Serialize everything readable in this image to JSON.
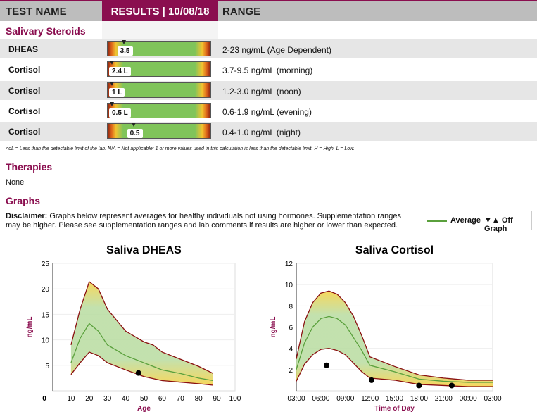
{
  "header": {
    "test_name": "TEST NAME",
    "results": "RESULTS | 10/08/18",
    "range": "RANGE"
  },
  "section": "Salivary Steroids",
  "rows": [
    {
      "name": "DHEAS",
      "value": "3.5",
      "marker": 0.14,
      "range": "2-23 ng/mL (Age Dependent)"
    },
    {
      "name": "Cortisol",
      "value": "2.4 L",
      "marker": 0.02,
      "range": "3.7-9.5 ng/mL (morning)"
    },
    {
      "name": "Cortisol",
      "value": "1 L",
      "marker": 0.02,
      "range": "1.2-3.0 ng/mL (noon)"
    },
    {
      "name": "Cortisol",
      "value": "0.5 L",
      "marker": 0.02,
      "range": "0.6-1.9 ng/mL (evening)"
    },
    {
      "name": "Cortisol",
      "value": "0.5",
      "marker": 0.24,
      "range": "0.4-1.0 ng/mL (night)"
    }
  ],
  "footnote": "<dL = Less than the detectable limit of the lab.  N/A = Not applicable; 1 or more values used in this calculation is less than the detectable limit.  H = High.  L = Low.",
  "therapies": {
    "title": "Therapies",
    "value": "None"
  },
  "graphs": {
    "title": "Graphs",
    "disclaimer_label": "Disclaimer:",
    "disclaimer": " Graphs below represent averages for healthy individuals not using hormones. Supplementation ranges may be higher. Please see supplementation ranges and lab comments if results are higher or lower than expected."
  },
  "legend": {
    "average": "Average",
    "off_graph": "▼▲ Off Graph"
  },
  "colors": {
    "brand": "#8a0e4f",
    "avg": "#5aa03c",
    "band": "#8a1010"
  },
  "chart_data": [
    {
      "type": "area",
      "title": "Saliva DHEAS",
      "xlabel": "Age",
      "ylabel": "ng/mL",
      "xlim": [
        0,
        100
      ],
      "ylim": [
        0,
        25
      ],
      "xticks": [
        10,
        20,
        30,
        40,
        50,
        60,
        70,
        80,
        90,
        100
      ],
      "yticks": [
        5,
        10,
        15,
        20,
        25
      ],
      "zero_label": "0",
      "x": [
        10,
        15,
        20,
        25,
        30,
        40,
        50,
        55,
        60,
        70,
        80,
        88
      ],
      "upper": [
        9,
        16,
        21.4,
        20,
        16,
        11.7,
        9.6,
        9,
        7.6,
        6.2,
        4.8,
        3.4
      ],
      "average": [
        5.5,
        10.3,
        13.2,
        11.7,
        9,
        6.9,
        5.5,
        4.8,
        4.1,
        3.4,
        2.5,
        2
      ],
      "lower": [
        3.2,
        5.5,
        7.6,
        6.9,
        5.5,
        4.1,
        2.8,
        2.4,
        2,
        1.7,
        1.4,
        1.1
      ],
      "points": [
        [
          47,
          3.5
        ]
      ]
    },
    {
      "type": "area",
      "title": "Saliva Cortisol",
      "xlabel": "Time of Day",
      "ylabel": "ng/mL",
      "xlim": [
        3,
        27
      ],
      "ylim": [
        0,
        12
      ],
      "xticks": [
        3,
        6,
        9,
        12,
        15,
        18,
        21,
        24,
        27
      ],
      "xtick_labels": [
        "03:00",
        "06:00",
        "09:00",
        "12:00",
        "15:00",
        "18:00",
        "21:00",
        "00:00",
        "03:00"
      ],
      "yticks": [
        2,
        4,
        6,
        8,
        10,
        12
      ],
      "x": [
        3,
        4,
        5,
        6,
        7,
        8,
        9,
        10,
        11,
        12,
        15,
        18,
        21,
        24,
        27
      ],
      "upper": [
        3,
        6.5,
        8.3,
        9.2,
        9.4,
        9.1,
        8.3,
        7,
        5.2,
        3.2,
        2.3,
        1.5,
        1.2,
        1,
        1
      ],
      "average": [
        2,
        4.5,
        6,
        6.8,
        7,
        6.8,
        6.2,
        5,
        3.8,
        2.4,
        1.8,
        1.1,
        0.9,
        0.8,
        0.8
      ],
      "lower": [
        0.9,
        2.5,
        3.4,
        3.9,
        4,
        3.8,
        3.4,
        2.6,
        1.8,
        1.2,
        1,
        0.6,
        0.5,
        0.4,
        0.4
      ],
      "points": [
        [
          6.7,
          2.4
        ],
        [
          12.2,
          1
        ],
        [
          18,
          0.5
        ],
        [
          22,
          0.5
        ]
      ]
    }
  ]
}
